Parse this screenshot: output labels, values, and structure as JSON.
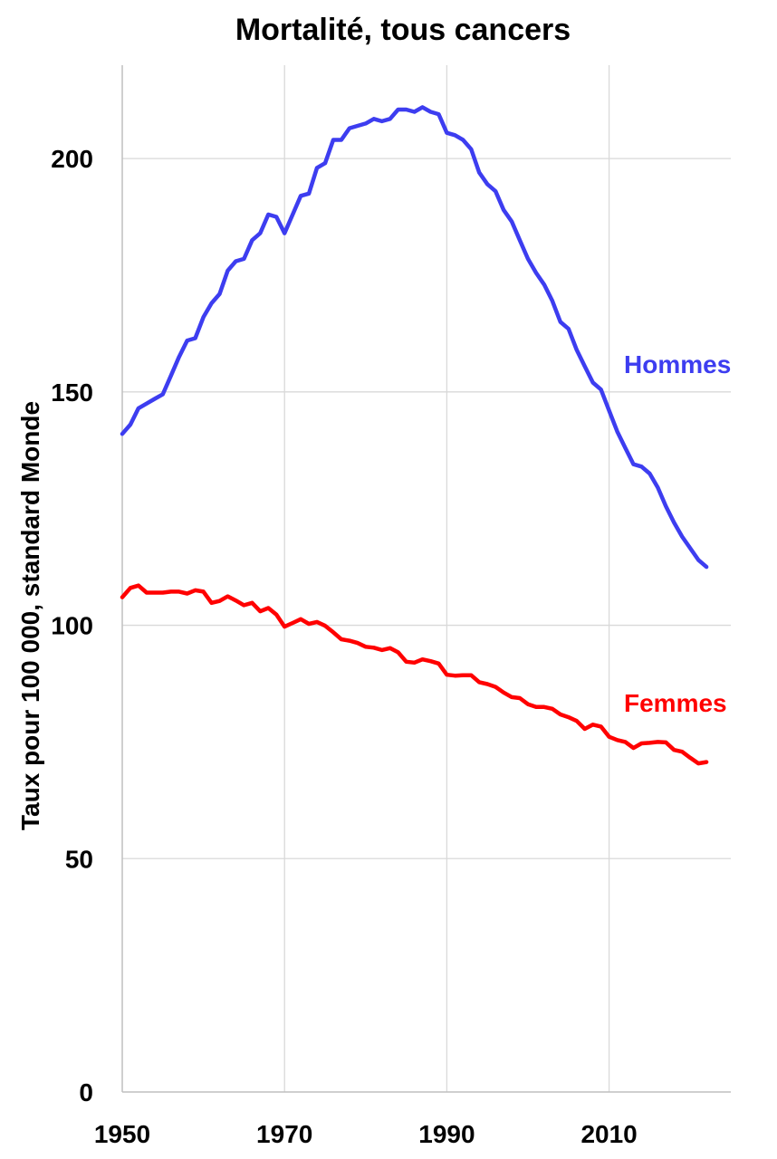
{
  "chart_data": {
    "type": "line",
    "title": "Mortalité, tous cancers",
    "ylabel": "Taux pour 100 000, standard Monde",
    "xlabel": "",
    "xlim": [
      1950,
      2025
    ],
    "ylim": [
      0,
      220
    ],
    "xticks": [
      1950,
      1970,
      1990,
      2010
    ],
    "yticks": [
      0,
      50,
      100,
      150,
      200
    ],
    "grid": true,
    "legend": "none (inline labels at right)",
    "x": [
      1950,
      1951,
      1952,
      1953,
      1954,
      1955,
      1956,
      1957,
      1958,
      1959,
      1960,
      1961,
      1962,
      1963,
      1964,
      1965,
      1966,
      1967,
      1968,
      1969,
      1970,
      1971,
      1972,
      1973,
      1974,
      1975,
      1976,
      1977,
      1978,
      1979,
      1980,
      1981,
      1982,
      1983,
      1984,
      1985,
      1986,
      1987,
      1988,
      1989,
      1990,
      1991,
      1992,
      1993,
      1994,
      1995,
      1996,
      1997,
      1998,
      1999,
      2000,
      2001,
      2002,
      2003,
      2004,
      2005,
      2006,
      2007,
      2008,
      2009,
      2010,
      2011,
      2012,
      2013,
      2014,
      2015,
      2016,
      2017,
      2018,
      2019,
      2020,
      2021,
      2022
    ],
    "series": [
      {
        "name": "Hommes",
        "color": "#3d3df0",
        "values": [
          141,
          143,
          146.5,
          147.5,
          148.5,
          149.5,
          153.5,
          157.5,
          161,
          161.5,
          166,
          169,
          171,
          176,
          178,
          178.5,
          182.5,
          184,
          188,
          187.5,
          184,
          188,
          192,
          192.5,
          198,
          199,
          204,
          204,
          206.5,
          207,
          207.5,
          208.5,
          208,
          208.5,
          210.5,
          210.5,
          210,
          211,
          210,
          209.5,
          205.5,
          205,
          204,
          202,
          197,
          194.5,
          193,
          189,
          186.5,
          182.5,
          178.5,
          175.5,
          173,
          169.5,
          165,
          163.5,
          159,
          155.5,
          152,
          150.5,
          146,
          141.5,
          138,
          134.5,
          134,
          132.5,
          129.5,
          125.5,
          122,
          119,
          116.5,
          114,
          112.5
        ]
      },
      {
        "name": "Femmes",
        "color": "#ff0000",
        "values": [
          106,
          108,
          108.5,
          107,
          107,
          107,
          107.2,
          107.2,
          106.8,
          107.5,
          107.2,
          104.8,
          105.2,
          106.2,
          105.3,
          104.3,
          104.8,
          103,
          103.7,
          102.3,
          99.7,
          100.5,
          101.3,
          100.3,
          100.7,
          99.9,
          98.5,
          97,
          96.7,
          96.2,
          95.4,
          95.2,
          94.7,
          95.1,
          94.2,
          92.2,
          92,
          92.7,
          92.3,
          91.8,
          89.4,
          89.2,
          89.3,
          89.3,
          87.8,
          87.4,
          86.8,
          85.6,
          84.6,
          84.4,
          83.1,
          82.5,
          82.5,
          82.1,
          80.9,
          80.3,
          79.5,
          77.8,
          78.7,
          78.3,
          76.1,
          75.4,
          75,
          73.7,
          74.7,
          74.8,
          75,
          74.9,
          73.3,
          72.9,
          71.6,
          70.4,
          70.7
        ]
      }
    ]
  }
}
